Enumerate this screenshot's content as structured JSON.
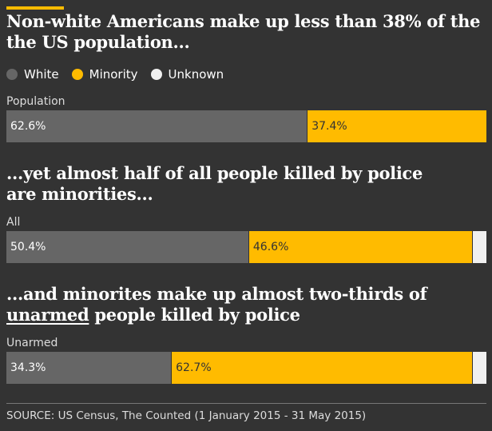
{
  "chart_data": {
    "type": "bar",
    "stacked": true,
    "orientation": "horizontal",
    "title": "Non-white Americans make up less than 38% of the the US population...",
    "legend": [
      "White",
      "Minority",
      "Unknown"
    ],
    "colors": {
      "White": "#666666",
      "Minority": "#ffbb00",
      "Unknown": "#f0f0f0",
      "accent": "#ffbb00",
      "background": "#333333"
    },
    "panels": [
      {
        "heading": "Non-white Americans make up less than 38% of the the US population...",
        "category": "Population",
        "values": {
          "White": 62.6,
          "Minority": 37.4,
          "Unknown": 0
        },
        "labels": {
          "White": "62.6%",
          "Minority": "37.4%"
        }
      },
      {
        "heading": "...yet almost half of all people killed by police are minorities...",
        "category": "All",
        "values": {
          "White": 50.4,
          "Minority": 46.6,
          "Unknown": 3.0
        },
        "labels": {
          "White": "50.4%",
          "Minority": "46.6%"
        }
      },
      {
        "heading_before": "...and minorites make up almost two-thirds of ",
        "heading_underlined": "unarmed",
        "heading_after": " people killed by police",
        "category": "Unarmed",
        "values": {
          "White": 34.3,
          "Minority": 62.7,
          "Unknown": 3.0
        },
        "labels": {
          "White": "34.3%",
          "Minority": "62.7%"
        }
      }
    ],
    "source": "SOURCE: US Census, The Counted (1 January 2015 - 31 May 2015)"
  }
}
